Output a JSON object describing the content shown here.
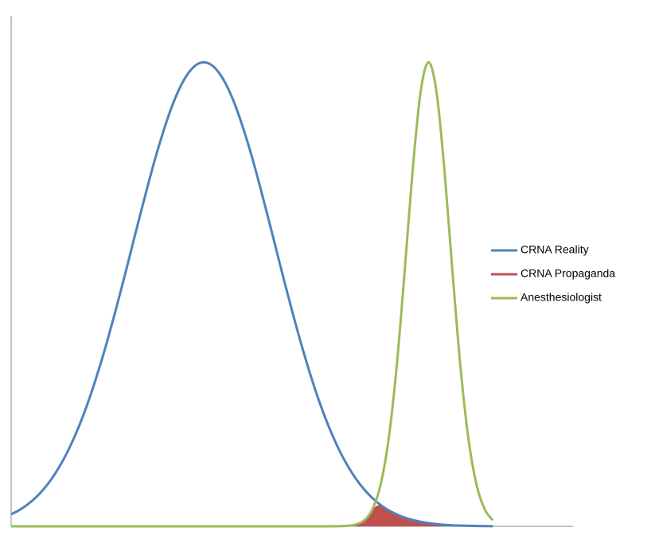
{
  "chart_data": {
    "type": "line",
    "legend": "right",
    "grid": false,
    "xlim": [
      0,
      35
    ],
    "ylim": [
      0,
      1.1
    ],
    "x": [
      0,
      0.5,
      1,
      1.5,
      2,
      2.5,
      3,
      3.5,
      4,
      4.5,
      5,
      5.5,
      6,
      6.5,
      7,
      7.5,
      8,
      8.5,
      9,
      9.5,
      10,
      10.5,
      11,
      11.5,
      12,
      12.5,
      13,
      13.5,
      14,
      14.5,
      15,
      15.5,
      16,
      16.5,
      17,
      17.5,
      18,
      18.5,
      19,
      19.5,
      20,
      20.5,
      21,
      21.5,
      22,
      22.5,
      23,
      23.5,
      24,
      24.5,
      25,
      25.5,
      26,
      26.5,
      27,
      27.5,
      28,
      28.5,
      29,
      29.5,
      30
    ],
    "series": [
      {
        "name": "CRNA Reality",
        "color": "#4f81bd",
        "fill": false,
        "values": [
          0.0259,
          0.0348,
          0.0464,
          0.0609,
          0.079,
          0.1012,
          0.128,
          0.1598,
          0.1971,
          0.2398,
          0.2883,
          0.3423,
          0.401,
          0.464,
          0.53,
          0.5981,
          0.6663,
          0.7327,
          0.7961,
          0.853,
          0.9035,
          0.9445,
          0.9749,
          0.9937,
          1,
          0.9937,
          0.9749,
          0.9445,
          0.9035,
          0.853,
          0.7961,
          0.7327,
          0.6663,
          0.5981,
          0.53,
          0.464,
          0.401,
          0.3423,
          0.2883,
          0.2398,
          0.1971,
          0.1598,
          0.128,
          0.1012,
          0.079,
          0.0609,
          0.0464,
          0.0348,
          0.0259,
          0.0189,
          0.0137,
          0.0098,
          0.0069,
          0.0048,
          0.0033,
          0.0022,
          0.0015,
          0.001,
          0.0007,
          0.0004,
          0.0003
        ]
      },
      {
        "name": "CRNA Propaganda",
        "color": "#c0504d",
        "fill": true,
        "values": [
          null,
          null,
          null,
          null,
          null,
          null,
          null,
          null,
          null,
          null,
          null,
          null,
          null,
          null,
          null,
          null,
          null,
          null,
          null,
          null,
          null,
          null,
          null,
          null,
          null,
          null,
          null,
          null,
          null,
          null,
          null,
          null,
          null,
          null,
          null,
          null,
          null,
          null,
          null,
          null,
          null,
          null,
          0.0012,
          0.0042,
          0.0132,
          0.0365,
          0.0464,
          0.0348,
          0.0259,
          0.0189,
          0.0137,
          0.0098,
          0.0069,
          0.0048,
          0.0033,
          null,
          null,
          null,
          null,
          null,
          null
        ]
      },
      {
        "name": "Anesthesiologist",
        "color": "#9bbb59",
        "fill": false,
        "values": [
          0,
          0,
          0,
          0,
          0,
          0,
          0,
          0,
          0,
          0,
          0,
          0,
          0,
          0,
          0,
          0,
          0,
          0,
          0,
          0,
          0,
          0,
          0,
          0,
          0,
          0,
          0,
          0,
          0,
          0,
          0,
          0,
          0,
          0,
          0,
          0,
          0,
          0,
          0,
          0,
          0.0001,
          0.0003,
          0.0012,
          0.0042,
          0.0132,
          0.0365,
          0.0879,
          0.1847,
          0.3392,
          0.5444,
          0.7634,
          0.9347,
          1,
          0.9347,
          0.7634,
          0.5444,
          0.3392,
          0.1847,
          0.0879,
          0.0365,
          0.0132
        ]
      }
    ]
  }
}
